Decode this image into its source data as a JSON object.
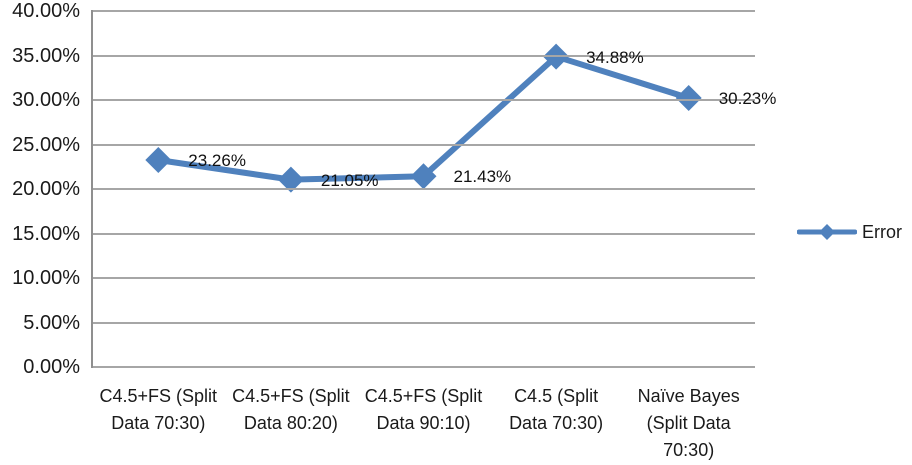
{
  "chart_data": {
    "type": "line",
    "title": "",
    "xlabel": "",
    "ylabel": "",
    "categories": [
      "C4.5+FS (Split Data 70:30)",
      "C4.5+FS (Split Data 80:20)",
      "C4.5+FS (Split Data 90:10)",
      "C4.5 (Split Data 70:30)",
      "Naïve Bayes (Split Data 70:30)"
    ],
    "series": [
      {
        "name": "Error",
        "values": [
          23.26,
          21.05,
          21.43,
          34.88,
          30.23
        ]
      }
    ],
    "data_labels": [
      "23.26%",
      "21.05%",
      "21.43%",
      "34.88%",
      "30.23%"
    ],
    "y_ticks": [
      "0.00%",
      "5.00%",
      "10.00%",
      "15.00%",
      "20.00%",
      "25.00%",
      "30.00%",
      "35.00%",
      "40.00%"
    ],
    "ylim": [
      0,
      40
    ],
    "y_step": 5,
    "grid": true,
    "legend_position": "right",
    "marker": "diamond",
    "colors": {
      "line": "#4f81bd",
      "gridline": "#a6a6a6",
      "axis": "#8f8f8f",
      "text": "#1a1a1a"
    }
  },
  "legend": {
    "label": "Error"
  }
}
